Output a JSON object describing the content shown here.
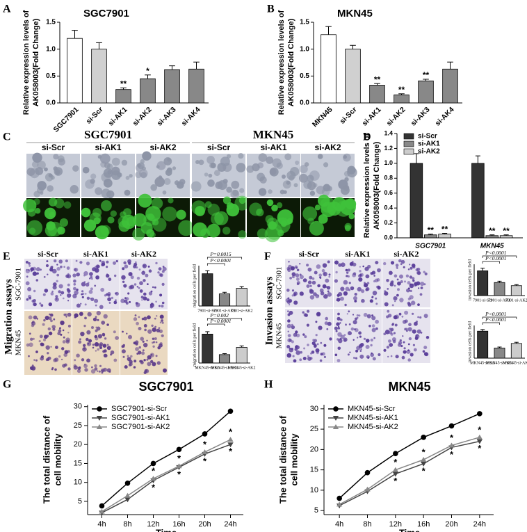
{
  "panel_letters": [
    "A",
    "B",
    "C",
    "D",
    "E",
    "F",
    "G",
    "H"
  ],
  "panel_c": {
    "groups": [
      "SGC7901",
      "MKN45"
    ],
    "columns": [
      "si-Scr",
      "si-AK1",
      "si-AK2"
    ]
  },
  "panel_e": {
    "side": "Migration assays",
    "rows": [
      "SGC-7901",
      "MKN45"
    ],
    "columns": [
      "si-Scr",
      "si-AK1",
      "si-AK2"
    ]
  },
  "panel_f": {
    "side": "Invasion assays",
    "rows": [
      "SGC-7901",
      "MKN45"
    ],
    "columns": [
      "si-Scr",
      "si-AK1",
      "si-AK2"
    ]
  },
  "chart_data": [
    {
      "type": "bar",
      "title": "SGC7901",
      "ylabel": [
        "Relative expression levels of",
        "AK058003(Fold Change)"
      ],
      "categories": [
        "SGC7901",
        "si-Scr",
        "si-AK1",
        "si-AK2",
        "si-AK3",
        "si-AK4"
      ],
      "values": [
        1.2,
        1.0,
        0.25,
        0.45,
        0.62,
        0.63
      ],
      "errors": [
        0.15,
        0.12,
        0.03,
        0.07,
        0.07,
        0.13
      ],
      "stars": [
        null,
        null,
        "**",
        "*",
        null,
        null
      ],
      "colors": [
        "#ffffff",
        "#d0d0d0",
        "#888888",
        "#888888",
        "#888888",
        "#888888"
      ],
      "ylim": [
        0,
        1.5
      ],
      "yticks": [
        {
          "value": 0,
          "label": "0.0"
        },
        0.5,
        {
          "value": 1,
          "label": "1.0"
        },
        1.5
      ]
    },
    {
      "type": "bar",
      "title": "MKN45",
      "ylabel": [
        "Relative expression levels of",
        "AK058003(Fold Change)"
      ],
      "categories": [
        "MKN45",
        "si-Scr",
        "si-AK1",
        "si-AK2",
        "si-AK3",
        "si-AK4"
      ],
      "values": [
        1.27,
        1.0,
        0.33,
        0.15,
        0.41,
        0.63
      ],
      "errors": [
        0.15,
        0.07,
        0.03,
        0.02,
        0.03,
        0.13
      ],
      "stars": [
        null,
        null,
        "**",
        "**",
        "**",
        null
      ],
      "colors": [
        "#ffffff",
        "#d0d0d0",
        "#888888",
        "#888888",
        "#888888",
        "#888888"
      ],
      "ylim": [
        0,
        1.5
      ],
      "yticks": [
        {
          "value": 0,
          "label": "0.0"
        },
        0.5,
        {
          "value": 1,
          "label": "1.0"
        },
        1.5
      ]
    },
    {
      "type": "bar",
      "ylabel": [
        "Relative expression levels of",
        "AK058003(Fold Change)"
      ],
      "categories": [
        "SGC7901",
        "MKN45"
      ],
      "series": [
        {
          "name": "si-Scr",
          "color": "#333333",
          "values": [
            1.0,
            1.0
          ],
          "errors": [
            0.13,
            0.1
          ],
          "stars": [
            null,
            null
          ]
        },
        {
          "name": "si-AK1",
          "color": "#888888",
          "values": [
            0.04,
            0.03
          ],
          "errors": [
            0.01,
            0.01
          ],
          "stars": [
            "**",
            "**"
          ]
        },
        {
          "name": "si-AK2",
          "color": "#cccccc",
          "values": [
            0.05,
            0.03
          ],
          "errors": [
            0.01,
            0.01
          ],
          "stars": [
            "**",
            "**"
          ]
        }
      ],
      "legend": "upper left",
      "ylim": [
        0,
        1.4
      ],
      "yticks": [
        {
          "value": 0,
          "label": "0.0"
        },
        0.2,
        0.4,
        0.6,
        0.8,
        {
          "value": 1,
          "label": "1.0"
        },
        1.2,
        1.4
      ]
    },
    {
      "type": "bar",
      "ylabel": [
        "migration cells per field"
      ],
      "categories": [
        "7901-si-Scr",
        "7901-si-AK1",
        "7901-si-AK2"
      ],
      "values": [
        160,
        60,
        88
      ],
      "errors": [
        15,
        8,
        8
      ],
      "colors": [
        "#333333",
        "#888888",
        "#cccccc"
      ],
      "annotations": [
        "P=0.0015",
        "P<0.0001"
      ],
      "ylim": [
        0,
        200
      ]
    },
    {
      "type": "bar",
      "ylabel": [
        "migration cells per field"
      ],
      "categories": [
        "MKN45-si-Scr",
        "MKN45-si-AK1",
        "MKN45-si-AK2"
      ],
      "values": [
        120,
        35,
        65
      ],
      "errors": [
        10,
        4,
        6
      ],
      "colors": [
        "#333333",
        "#888888",
        "#cccccc"
      ],
      "annotations": [
        "P=0.002",
        "P<0.0001"
      ],
      "ylim": [
        0,
        150
      ]
    },
    {
      "type": "bar",
      "ylabel": [
        "invasion cells per field"
      ],
      "categories": [
        "7901-si-Scr",
        "7901-si-AK1",
        "7901-si-AK2"
      ],
      "values": [
        95,
        50,
        38
      ],
      "errors": [
        10,
        5,
        4
      ],
      "colors": [
        "#333333",
        "#888888",
        "#cccccc"
      ],
      "annotations": [
        "P<0.0001",
        "P<0.0001"
      ],
      "ylim": [
        0,
        120
      ]
    },
    {
      "type": "bar",
      "ylabel": [
        "invasion cells per field"
      ],
      "categories": [
        "MKN45-si-Scr",
        "MKN45-si-AK1",
        "MKN45-si-AK2"
      ],
      "values": [
        165,
        62,
        90
      ],
      "errors": [
        10,
        6,
        7
      ],
      "colors": [
        "#333333",
        "#888888",
        "#cccccc"
      ],
      "annotations": [
        "P<0.0001",
        "P<0.0001"
      ],
      "ylim": [
        0,
        200
      ]
    },
    {
      "type": "line",
      "title": "SGC7901",
      "xlabel": "Time",
      "ylabel": [
        "The total distance of",
        "cell mobility"
      ],
      "categories": [
        "4h",
        "8h",
        "12h",
        "16h",
        "20h",
        "24h"
      ],
      "series": [
        {
          "name": "SGC7901-si-Scr",
          "color": "#000000",
          "marker": "circle",
          "values": [
            3.8,
            9.8,
            15,
            18.7,
            22.8,
            28.8
          ],
          "annotations": [
            null,
            null,
            null,
            null,
            null,
            null
          ]
        },
        {
          "name": "SGC7901-si-AK1",
          "color": "#444444",
          "marker": "triangle-down",
          "values": [
            2,
            5.5,
            10.5,
            14,
            17.5,
            20
          ],
          "annotations": [
            null,
            null,
            "*",
            "*",
            "*",
            "*"
          ]
        },
        {
          "name": "SGC7901-si-AK2",
          "color": "#888888",
          "marker": "triangle-up",
          "values": [
            2.3,
            6.5,
            11,
            14.3,
            18,
            21.3
          ],
          "annotations": [
            null,
            null,
            "*",
            "*",
            "*",
            "*"
          ]
        }
      ],
      "legend": "upper left",
      "ylim": [
        1.5,
        30.5
      ],
      "yticks": [
        5,
        10,
        15,
        20,
        25,
        30
      ]
    },
    {
      "type": "line",
      "title": "MKN45",
      "xlabel": "Time",
      "ylabel": [
        "The total distance of",
        "cell mobility"
      ],
      "categories": [
        "4h",
        "8h",
        "12h",
        "16h",
        "20h",
        "24h"
      ],
      "series": [
        {
          "name": "MKN45-si-Scr",
          "color": "#000000",
          "marker": "circle",
          "values": [
            8,
            14.3,
            19,
            23,
            25.8,
            28.8
          ],
          "annotations": [
            null,
            null,
            null,
            null,
            null,
            null
          ]
        },
        {
          "name": "MKN45-si-AK1",
          "color": "#444444",
          "marker": "triangle-down",
          "values": [
            6.2,
            9.7,
            14,
            16.5,
            20.5,
            22
          ],
          "annotations": [
            null,
            null,
            "*",
            "*",
            "*",
            "*"
          ]
        },
        {
          "name": "MKN45-si-AK2",
          "color": "#888888",
          "marker": "triangle-up",
          "values": [
            6.5,
            10.2,
            15,
            17.5,
            21,
            23
          ],
          "annotations": [
            null,
            null,
            "*",
            "*",
            "*",
            "*"
          ]
        }
      ],
      "legend": "upper left",
      "ylim": [
        4,
        31
      ],
      "yticks": [
        5,
        10,
        15,
        20,
        25,
        30
      ]
    }
  ]
}
